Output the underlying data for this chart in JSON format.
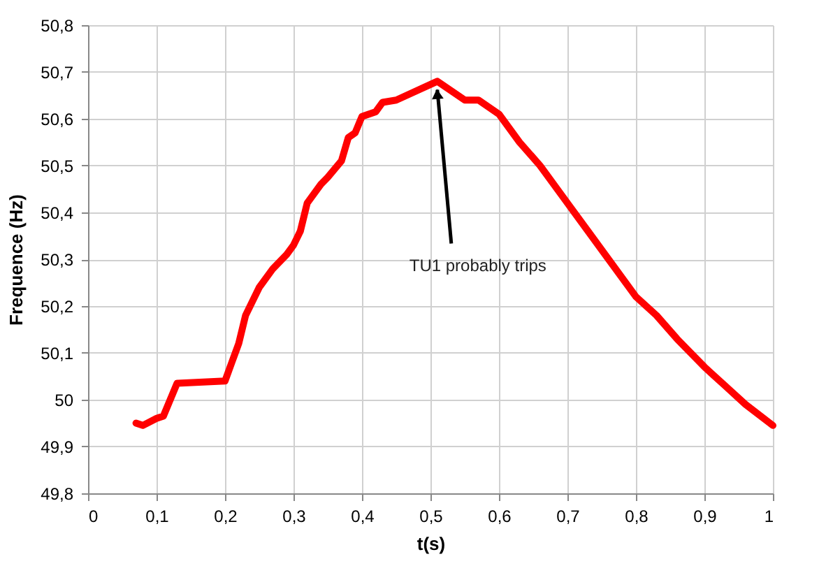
{
  "chart_data": {
    "type": "line",
    "xlabel": "t(s)",
    "ylabel": "Frequence (Hz)",
    "x": [
      0.07,
      0.08,
      0.1,
      0.11,
      0.13,
      0.2,
      0.21,
      0.22,
      0.23,
      0.25,
      0.27,
      0.29,
      0.3,
      0.31,
      0.32,
      0.34,
      0.35,
      0.37,
      0.38,
      0.39,
      0.4,
      0.42,
      0.43,
      0.45,
      0.51,
      0.55,
      0.57,
      0.6,
      0.63,
      0.66,
      0.7,
      0.73,
      0.76,
      0.8,
      0.83,
      0.86,
      0.9,
      0.93,
      0.96,
      1.0
    ],
    "series": [
      {
        "color": "#ff0000",
        "values": [
          49.95,
          49.945,
          49.96,
          49.965,
          50.035,
          50.04,
          50.08,
          50.12,
          50.18,
          50.24,
          50.28,
          50.31,
          50.33,
          50.36,
          50.42,
          50.46,
          50.475,
          50.51,
          50.56,
          50.57,
          50.605,
          50.615,
          50.635,
          50.64,
          50.68,
          50.64,
          50.64,
          50.61,
          50.55,
          50.5,
          50.42,
          50.36,
          50.3,
          50.22,
          50.18,
          50.13,
          50.07,
          50.03,
          49.99,
          49.945
        ]
      }
    ],
    "xlim": [
      0,
      1
    ],
    "xticks": [
      0,
      {
        "value": 0.1,
        "label": "0,1"
      },
      {
        "value": 0.2,
        "label": "0,2"
      },
      {
        "value": 0.3,
        "label": "0,3"
      },
      {
        "value": 0.4,
        "label": "0,4"
      },
      {
        "value": 0.5,
        "label": "0,5"
      },
      {
        "value": 0.6,
        "label": "0,6"
      },
      {
        "value": 0.7,
        "label": "0,7"
      },
      {
        "value": 0.8,
        "label": "0,8"
      },
      {
        "value": 0.9,
        "label": "0,9"
      },
      1
    ],
    "ylim": [
      49.8,
      50.8
    ],
    "yticks": [
      {
        "value": 49.8,
        "label": "49,8"
      },
      {
        "value": 49.9,
        "label": "49,9"
      },
      50,
      {
        "value": 50.1,
        "label": "50,1"
      },
      {
        "value": 50.2,
        "label": "50,2"
      },
      {
        "value": 50.3,
        "label": "50,3"
      },
      {
        "value": 50.4,
        "label": "50,4"
      },
      {
        "value": 50.5,
        "label": "50,5"
      },
      {
        "value": 50.6,
        "label": "50,6"
      },
      {
        "value": 50.7,
        "label": "50,7"
      },
      {
        "value": 50.8,
        "label": "50,8"
      }
    ],
    "grid": true,
    "legend": false,
    "marker": "none",
    "line_style": "solid",
    "annotations": [
      {
        "text": "TU1 probably trips",
        "x": 0.51,
        "y": 50.68
      }
    ]
  }
}
